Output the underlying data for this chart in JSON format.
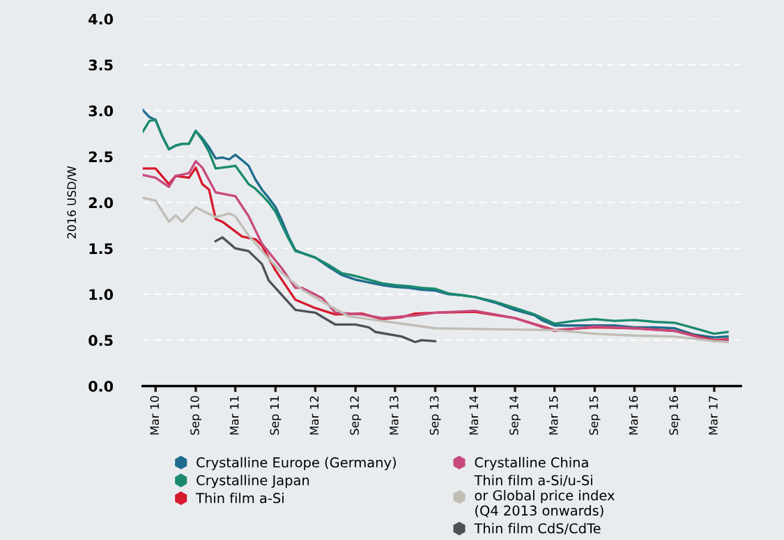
{
  "chart_data": {
    "type": "line",
    "ylabel": "2016 USD/W",
    "xlim": [
      "2010-01",
      "2017-07"
    ],
    "ylim": [
      0,
      4
    ],
    "yticks": [
      {
        "value": 0,
        "label": "0.0"
      },
      {
        "value": 0.5,
        "label": "0.5"
      },
      {
        "value": 1,
        "label": "1.0"
      },
      {
        "value": 1.5,
        "label": "1.5"
      },
      {
        "value": 2,
        "label": "2.0"
      },
      {
        "value": 2.5,
        "label": "2.5"
      },
      {
        "value": 3,
        "label": "3.0"
      },
      {
        "value": 3.5,
        "label": "3.5"
      },
      {
        "value": 4,
        "label": "4.0"
      }
    ],
    "xticks": [
      {
        "value": "2010-03",
        "label": "Mar 10"
      },
      {
        "value": "2010-09",
        "label": "Sep 10"
      },
      {
        "value": "2011-03",
        "label": "Mar 11"
      },
      {
        "value": "2011-09",
        "label": "Sep 11"
      },
      {
        "value": "2012-03",
        "label": "Mar 12"
      },
      {
        "value": "2012-09",
        "label": "Sep 12"
      },
      {
        "value": "2013-03",
        "label": "Mar 13"
      },
      {
        "value": "2013-09",
        "label": "Sep 13"
      },
      {
        "value": "2014-03",
        "label": "Mar 14"
      },
      {
        "value": "2014-09",
        "label": "Sep 14"
      },
      {
        "value": "2015-03",
        "label": "Mar 15"
      },
      {
        "value": "2015-09",
        "label": "Sep 15"
      },
      {
        "value": "2016-03",
        "label": "Mar 16"
      },
      {
        "value": "2016-09",
        "label": "Sep 16"
      },
      {
        "value": "2017-03",
        "label": "Mar 17"
      }
    ],
    "grid": "y",
    "legend": "bottom",
    "marker": "none",
    "line_style": "solid",
    "series": [
      {
        "name": "Crystalline Europe (Germany)",
        "color": "#1f6c8c",
        "x": [
          "2010-01",
          "2010-02",
          "2010-03",
          "2010-04",
          "2010-05",
          "2010-06",
          "2010-07",
          "2010-08",
          "2010-09",
          "2010-10",
          "2010-11",
          "2010-12",
          "2011-01",
          "2011-02",
          "2011-03",
          "2011-04",
          "2011-05",
          "2011-06",
          "2011-07",
          "2011-08",
          "2011-09",
          "2011-10",
          "2011-11",
          "2011-12",
          "2012-01",
          "2012-03",
          "2012-05",
          "2012-07",
          "2012-09",
          "2012-11",
          "2013-01",
          "2013-03",
          "2013-05",
          "2013-07",
          "2013-09",
          "2013-11",
          "2014-01",
          "2014-03",
          "2014-06",
          "2014-09",
          "2014-12",
          "2015-01",
          "2015-03",
          "2015-06",
          "2015-09",
          "2015-12",
          "2016-03",
          "2016-06",
          "2016-09",
          "2016-12",
          "2017-03",
          "2017-05"
        ],
        "values": [
          3.01,
          2.93,
          2.9,
          2.72,
          2.58,
          2.62,
          2.64,
          2.64,
          2.78,
          2.7,
          2.6,
          2.48,
          2.49,
          2.47,
          2.52,
          2.46,
          2.4,
          2.25,
          2.14,
          2.05,
          1.95,
          1.8,
          1.62,
          1.48,
          1.45,
          1.4,
          1.3,
          1.21,
          1.16,
          1.13,
          1.1,
          1.08,
          1.07,
          1.05,
          1.04,
          1.0,
          0.99,
          0.97,
          0.91,
          0.83,
          0.77,
          0.72,
          0.66,
          0.66,
          0.66,
          0.66,
          0.64,
          0.64,
          0.63,
          0.56,
          0.53,
          0.54
        ]
      },
      {
        "name": "Crystalline Japan",
        "color": "#1a8a6e",
        "x": [
          "2010-01",
          "2010-02",
          "2010-03",
          "2010-04",
          "2010-05",
          "2010-06",
          "2010-07",
          "2010-08",
          "2010-09",
          "2010-10",
          "2010-11",
          "2010-12",
          "2011-01",
          "2011-02",
          "2011-03",
          "2011-04",
          "2011-05",
          "2011-06",
          "2011-07",
          "2011-08",
          "2011-09",
          "2011-10",
          "2011-11",
          "2011-12",
          "2012-01",
          "2012-03",
          "2012-05",
          "2012-07",
          "2012-09",
          "2012-11",
          "2013-01",
          "2013-03",
          "2013-05",
          "2013-07",
          "2013-09",
          "2013-11",
          "2014-01",
          "2014-03",
          "2014-06",
          "2014-09",
          "2014-12",
          "2015-03",
          "2015-06",
          "2015-09",
          "2015-12",
          "2016-03",
          "2016-06",
          "2016-09",
          "2016-12",
          "2017-03",
          "2017-05"
        ],
        "values": [
          2.77,
          2.89,
          2.9,
          2.72,
          2.58,
          2.62,
          2.64,
          2.64,
          2.78,
          2.68,
          2.55,
          2.37,
          2.38,
          2.39,
          2.4,
          2.3,
          2.2,
          2.15,
          2.08,
          2.0,
          1.9,
          1.75,
          1.6,
          1.47,
          1.45,
          1.4,
          1.32,
          1.23,
          1.2,
          1.16,
          1.12,
          1.1,
          1.09,
          1.07,
          1.06,
          1.01,
          0.99,
          0.97,
          0.92,
          0.85,
          0.78,
          0.68,
          0.71,
          0.73,
          0.71,
          0.72,
          0.7,
          0.69,
          0.63,
          0.57,
          0.59
        ]
      },
      {
        "name": "Thin film a-Si",
        "color": "#d7192d",
        "x": [
          "2010-01",
          "2010-03",
          "2010-05",
          "2010-06",
          "2010-08",
          "2010-09",
          "2010-10",
          "2010-11",
          "2010-12",
          "2011-01",
          "2011-04",
          "2011-06",
          "2011-07",
          "2011-09",
          "2011-12",
          "2012-03",
          "2012-06",
          "2012-10",
          "2013-01",
          "2013-04",
          "2013-06",
          "2013-09",
          "2014-03",
          "2014-09",
          "2015-03",
          "2015-09",
          "2016-03",
          "2016-09",
          "2017-03",
          "2017-05"
        ],
        "values": [
          2.37,
          2.37,
          2.2,
          2.29,
          2.27,
          2.38,
          2.2,
          2.14,
          1.82,
          1.79,
          1.63,
          1.6,
          1.53,
          1.26,
          0.94,
          0.85,
          0.78,
          0.79,
          0.73,
          0.75,
          0.79,
          0.8,
          0.81,
          0.74,
          0.61,
          0.64,
          0.63,
          0.6,
          0.5,
          0.51
        ]
      },
      {
        "name": "Crystalline China",
        "color": "#c84a7c",
        "x": [
          "2010-01",
          "2010-03",
          "2010-05",
          "2010-06",
          "2010-08",
          "2010-09",
          "2010-10",
          "2010-12",
          "2011-03",
          "2011-05",
          "2011-07",
          "2011-10",
          "2011-12",
          "2012-01",
          "2012-04",
          "2012-06",
          "2012-10",
          "2013-01",
          "2013-06",
          "2013-09",
          "2014-03",
          "2014-09",
          "2015-03",
          "2015-09",
          "2016-03",
          "2016-09",
          "2017-03",
          "2017-05"
        ],
        "values": [
          2.3,
          2.27,
          2.17,
          2.29,
          2.32,
          2.45,
          2.38,
          2.11,
          2.07,
          1.85,
          1.55,
          1.28,
          1.07,
          1.07,
          0.96,
          0.8,
          0.78,
          0.74,
          0.77,
          0.8,
          0.82,
          0.74,
          0.6,
          0.65,
          0.63,
          0.6,
          0.49,
          0.5
        ]
      },
      {
        "name": "Thin film a-Si/u-Si\nor Global price index\n(Q4 2013 onwards)",
        "color": "#c0bdb5",
        "x": [
          "2010-01",
          "2010-03",
          "2010-05",
          "2010-06",
          "2010-07",
          "2010-09",
          "2010-10",
          "2010-12",
          "2011-02",
          "2011-03",
          "2011-05",
          "2011-07",
          "2011-10",
          "2012-01",
          "2012-05",
          "2012-08",
          "2012-12",
          "2013-06",
          "2013-09",
          "2014-06",
          "2015-03",
          "2015-09",
          "2016-03",
          "2016-09",
          "2017-03",
          "2017-05"
        ],
        "values": [
          2.05,
          2.02,
          1.79,
          1.86,
          1.79,
          1.95,
          1.91,
          1.84,
          1.88,
          1.85,
          1.64,
          1.47,
          1.23,
          1.05,
          0.88,
          0.76,
          0.72,
          0.66,
          0.63,
          0.62,
          0.61,
          0.57,
          0.55,
          0.54,
          0.49,
          0.48
        ]
      },
      {
        "name": "Thin film CdS/CdTe",
        "color": "#4d5157",
        "x": [
          "2010-12",
          "2011-01",
          "2011-03",
          "2011-05",
          "2011-07",
          "2011-08",
          "2011-12",
          "2012-03",
          "2012-06",
          "2012-09",
          "2012-11",
          "2012-12",
          "2013-04",
          "2013-06",
          "2013-07",
          "2013-09"
        ],
        "values": [
          1.58,
          1.62,
          1.5,
          1.47,
          1.33,
          1.15,
          0.83,
          0.8,
          0.67,
          0.67,
          0.64,
          0.59,
          0.54,
          0.48,
          0.5,
          0.49
        ]
      }
    ]
  }
}
